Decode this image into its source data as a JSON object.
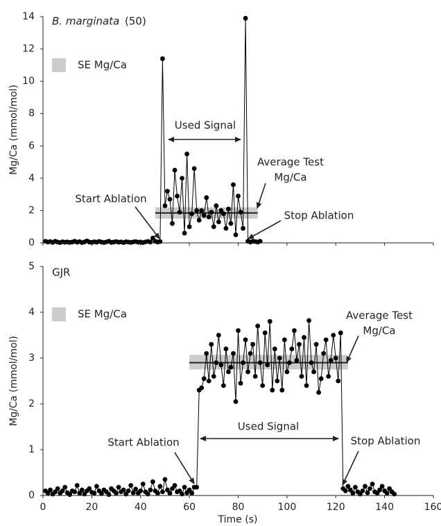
{
  "chart_data": [
    {
      "type": "line",
      "title_species": "B. marginata",
      "title_count": "(50)",
      "y_label": "Mg/Ca (mmol/mol)",
      "x": [
        1,
        2,
        3,
        4,
        5,
        6,
        7,
        8,
        9,
        10,
        11,
        12,
        13,
        14,
        15,
        16,
        17,
        18,
        19,
        20,
        21,
        22,
        23,
        24,
        25,
        26,
        27,
        28,
        29,
        30,
        31,
        32,
        33,
        34,
        35,
        36,
        37,
        38,
        39,
        40,
        41,
        42,
        43,
        44,
        45,
        46,
        47,
        48,
        49,
        50,
        51,
        52,
        53,
        54,
        55,
        56,
        57,
        58,
        59,
        60,
        61,
        62,
        63,
        64,
        65,
        66,
        67,
        68,
        69,
        70,
        71,
        72,
        73,
        74,
        75,
        76,
        77,
        78,
        79,
        80,
        81,
        82,
        83,
        84,
        85,
        86,
        87,
        88,
        89
      ],
      "series": [
        {
          "color": "#000000",
          "values": [
            0.1,
            0.05,
            0.08,
            0.03,
            0.1,
            0.05,
            0.02,
            0.07,
            0.04,
            0.06,
            0.03,
            0.05,
            0.1,
            0.04,
            0.08,
            0.02,
            0.06,
            0.12,
            0.05,
            0.03,
            0.07,
            0.04,
            0.09,
            0.05,
            0.02,
            0.06,
            0.1,
            0.03,
            0.05,
            0.08,
            0.04,
            0.06,
            0.02,
            0.07,
            0.05,
            0.03,
            0.06,
            0.08,
            0.04,
            0.05,
            0.02,
            0.06,
            0.09,
            0.05,
            0.3,
            0.1,
            0.05,
            0.08,
            11.4,
            2.3,
            3.2,
            2.7,
            1.2,
            4.5,
            2.9,
            1.9,
            4.0,
            0.6,
            5.5,
            1.0,
            1.8,
            4.6,
            2.0,
            1.4,
            2.0,
            1.7,
            2.8,
            1.6,
            1.9,
            1.0,
            2.3,
            1.3,
            2.0,
            1.8,
            0.9,
            2.1,
            1.2,
            3.6,
            0.5,
            2.9,
            1.9,
            0.9,
            13.9,
            0.1,
            0.05,
            0.1,
            0.08,
            0.05,
            0.1
          ]
        }
      ],
      "average": {
        "value": 1.85,
        "x": [
          46,
          88
        ]
      },
      "se_band": {
        "name": "SE Mg/Ca",
        "color": "#cccccc",
        "low": 1.5,
        "high": 2.2,
        "x": [
          46,
          88
        ]
      },
      "annotations": {
        "used_signal": "Used Signal",
        "average": [
          "Average Test",
          "Mg/Ca"
        ],
        "start": "Start Ablation",
        "stop": "Stop Ablation"
      },
      "xlim": [
        0,
        160
      ],
      "ylim": [
        0,
        14
      ],
      "yticks": [
        0,
        2,
        4,
        6,
        8,
        10,
        12,
        14
      ]
    },
    {
      "type": "line",
      "title": "GJR",
      "y_label": "Mg/Ca (mmol/mol)",
      "x_label": "Time (s)",
      "x": [
        1,
        2,
        3,
        4,
        5,
        6,
        7,
        8,
        9,
        10,
        11,
        12,
        13,
        14,
        15,
        16,
        17,
        18,
        19,
        20,
        21,
        22,
        23,
        24,
        25,
        26,
        27,
        28,
        29,
        30,
        31,
        32,
        33,
        34,
        35,
        36,
        37,
        38,
        39,
        40,
        41,
        42,
        43,
        44,
        45,
        46,
        47,
        48,
        49,
        50,
        51,
        52,
        53,
        54,
        55,
        56,
        57,
        58,
        59,
        60,
        61,
        62,
        63,
        64,
        65,
        66,
        67,
        68,
        69,
        70,
        71,
        72,
        73,
        74,
        75,
        76,
        77,
        78,
        79,
        80,
        81,
        82,
        83,
        84,
        85,
        86,
        87,
        88,
        89,
        90,
        91,
        92,
        93,
        94,
        95,
        96,
        97,
        98,
        99,
        100,
        101,
        102,
        103,
        104,
        105,
        106,
        107,
        108,
        109,
        110,
        111,
        112,
        113,
        114,
        115,
        116,
        117,
        118,
        119,
        120,
        121,
        122,
        123,
        124,
        125,
        126,
        127,
        128,
        129,
        130,
        131,
        132,
        133,
        134,
        135,
        136,
        137,
        138,
        139,
        140,
        141,
        142,
        143,
        144
      ],
      "series": [
        {
          "color": "#000000",
          "values": [
            0.1,
            0.05,
            0.12,
            0.03,
            0.08,
            0.15,
            0.05,
            0.1,
            0.18,
            0.06,
            0.02,
            0.1,
            0.08,
            0.22,
            0.05,
            0.12,
            0.03,
            0.1,
            0.15,
            0.07,
            0.05,
            0.2,
            0.1,
            0.04,
            0.12,
            0.08,
            0.02,
            0.15,
            0.1,
            0.05,
            0.18,
            0.08,
            0.12,
            0.03,
            0.1,
            0.22,
            0.06,
            0.14,
            0.05,
            0.1,
            0.25,
            0.08,
            0.03,
            0.12,
            0.3,
            0.1,
            0.05,
            0.2,
            0.08,
            0.35,
            0.12,
            0.05,
            0.15,
            0.22,
            0.08,
            0.1,
            0.03,
            0.18,
            0.06,
            0.12,
            0.05,
            0.18,
            0.18,
            2.3,
            2.35,
            2.55,
            3.1,
            2.5,
            3.3,
            2.6,
            2.9,
            3.5,
            2.85,
            2.4,
            3.2,
            2.7,
            2.8,
            3.1,
            2.05,
            3.6,
            2.45,
            2.9,
            3.4,
            2.7,
            3.1,
            3.3,
            2.6,
            3.7,
            2.9,
            2.4,
            3.55,
            2.85,
            3.8,
            2.3,
            3.2,
            2.5,
            3.0,
            2.3,
            3.4,
            2.7,
            2.9,
            3.2,
            3.6,
            2.95,
            3.3,
            2.6,
            3.45,
            2.4,
            3.82,
            2.9,
            2.7,
            3.3,
            2.25,
            2.55,
            3.1,
            3.4,
            2.6,
            2.95,
            3.5,
            3.0,
            2.5,
            3.55,
            0.15,
            0.1,
            0.2,
            0.12,
            0.05,
            0.18,
            0.08,
            0.03,
            0.1,
            0.2,
            0.06,
            0.15,
            0.25,
            0.08,
            0.05,
            0.12,
            0.2,
            0.1,
            0.05,
            0.15,
            0.08,
            0.03
          ]
        }
      ],
      "average": {
        "value": 2.9,
        "x": [
          60,
          125
        ]
      },
      "se_band": {
        "name": "SE Mg/Ca",
        "color": "#cccccc",
        "low": 2.75,
        "high": 3.07,
        "x": [
          60,
          125
        ]
      },
      "annotations": {
        "used_signal": "Used Signal",
        "average": [
          "Average Test",
          "Mg/Ca"
        ],
        "start": "Start Ablation",
        "stop": "Stop Ablation"
      },
      "xlim": [
        0,
        160
      ],
      "xticks": [
        0,
        20,
        40,
        60,
        80,
        100,
        120,
        140,
        160
      ],
      "ylim": [
        0,
        5
      ],
      "yticks": [
        0,
        1,
        2,
        3,
        4,
        5
      ]
    }
  ]
}
